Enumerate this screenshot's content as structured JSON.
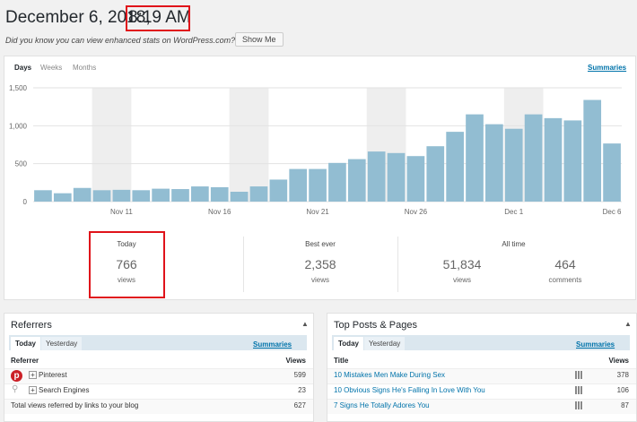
{
  "header": {
    "date": "December 6, 2018,",
    "time": "8:19 AM",
    "notice": "Did you know you can view enhanced stats on WordPress.com?",
    "button": "Show Me"
  },
  "chart": {
    "tabs": [
      "Days",
      "Weeks",
      "Months"
    ],
    "summaries_link": "Summaries",
    "type": "bar",
    "color": "#92bdd2",
    "categories": [
      null,
      null,
      null,
      null,
      "Nov 11",
      null,
      null,
      null,
      null,
      "Nov 16",
      null,
      null,
      null,
      null,
      "Nov 21",
      null,
      null,
      null,
      null,
      "Nov 26",
      null,
      null,
      null,
      null,
      "Dec 1",
      null,
      null,
      null,
      null,
      "Dec 6"
    ],
    "values": [
      150,
      110,
      180,
      150,
      155,
      150,
      170,
      165,
      200,
      190,
      130,
      200,
      290,
      430,
      430,
      510,
      560,
      660,
      640,
      600,
      730,
      920,
      1150,
      1020,
      960,
      1150,
      1100,
      1070,
      1340,
      766
    ],
    "ylim": [
      0,
      1500
    ],
    "yticks": [
      0,
      500,
      {
        "value": 1000,
        "label": "1,000"
      },
      {
        "value": 1500,
        "label": "1,500"
      }
    ],
    "grid": true
  },
  "summary": [
    {
      "label": "Today",
      "items": [
        {
          "value": "766",
          "unit": "views"
        }
      ]
    },
    {
      "label": "Best ever",
      "items": [
        {
          "value": "2,358",
          "unit": "views"
        }
      ]
    },
    {
      "label": "All time",
      "items": [
        {
          "value": "51,834",
          "unit": "views"
        },
        {
          "value": "464",
          "unit": "comments"
        }
      ]
    }
  ],
  "referrers": {
    "title": "Referrers",
    "tabs": [
      "Today",
      "Yesterday"
    ],
    "summaries_link": "Summaries",
    "columns": [
      "Referrer",
      "Views"
    ],
    "rows": [
      [
        "Pinterest",
        "599"
      ],
      [
        "Search Engines",
        "23"
      ],
      [
        "Total views referred by links to your blog",
        "627"
      ]
    ]
  },
  "top_posts": {
    "title": "Top Posts & Pages",
    "tabs": [
      "Today",
      "Yesterday"
    ],
    "summaries_link": "Summaries",
    "columns": [
      "Title",
      "Views"
    ],
    "rows": [
      [
        "10 Mistakes Men Make During Sex",
        "378"
      ],
      [
        "10 Obvious Signs He's Falling In Love With You",
        "106"
      ],
      [
        "7 Signs He Totally Adores You",
        "87"
      ]
    ]
  }
}
